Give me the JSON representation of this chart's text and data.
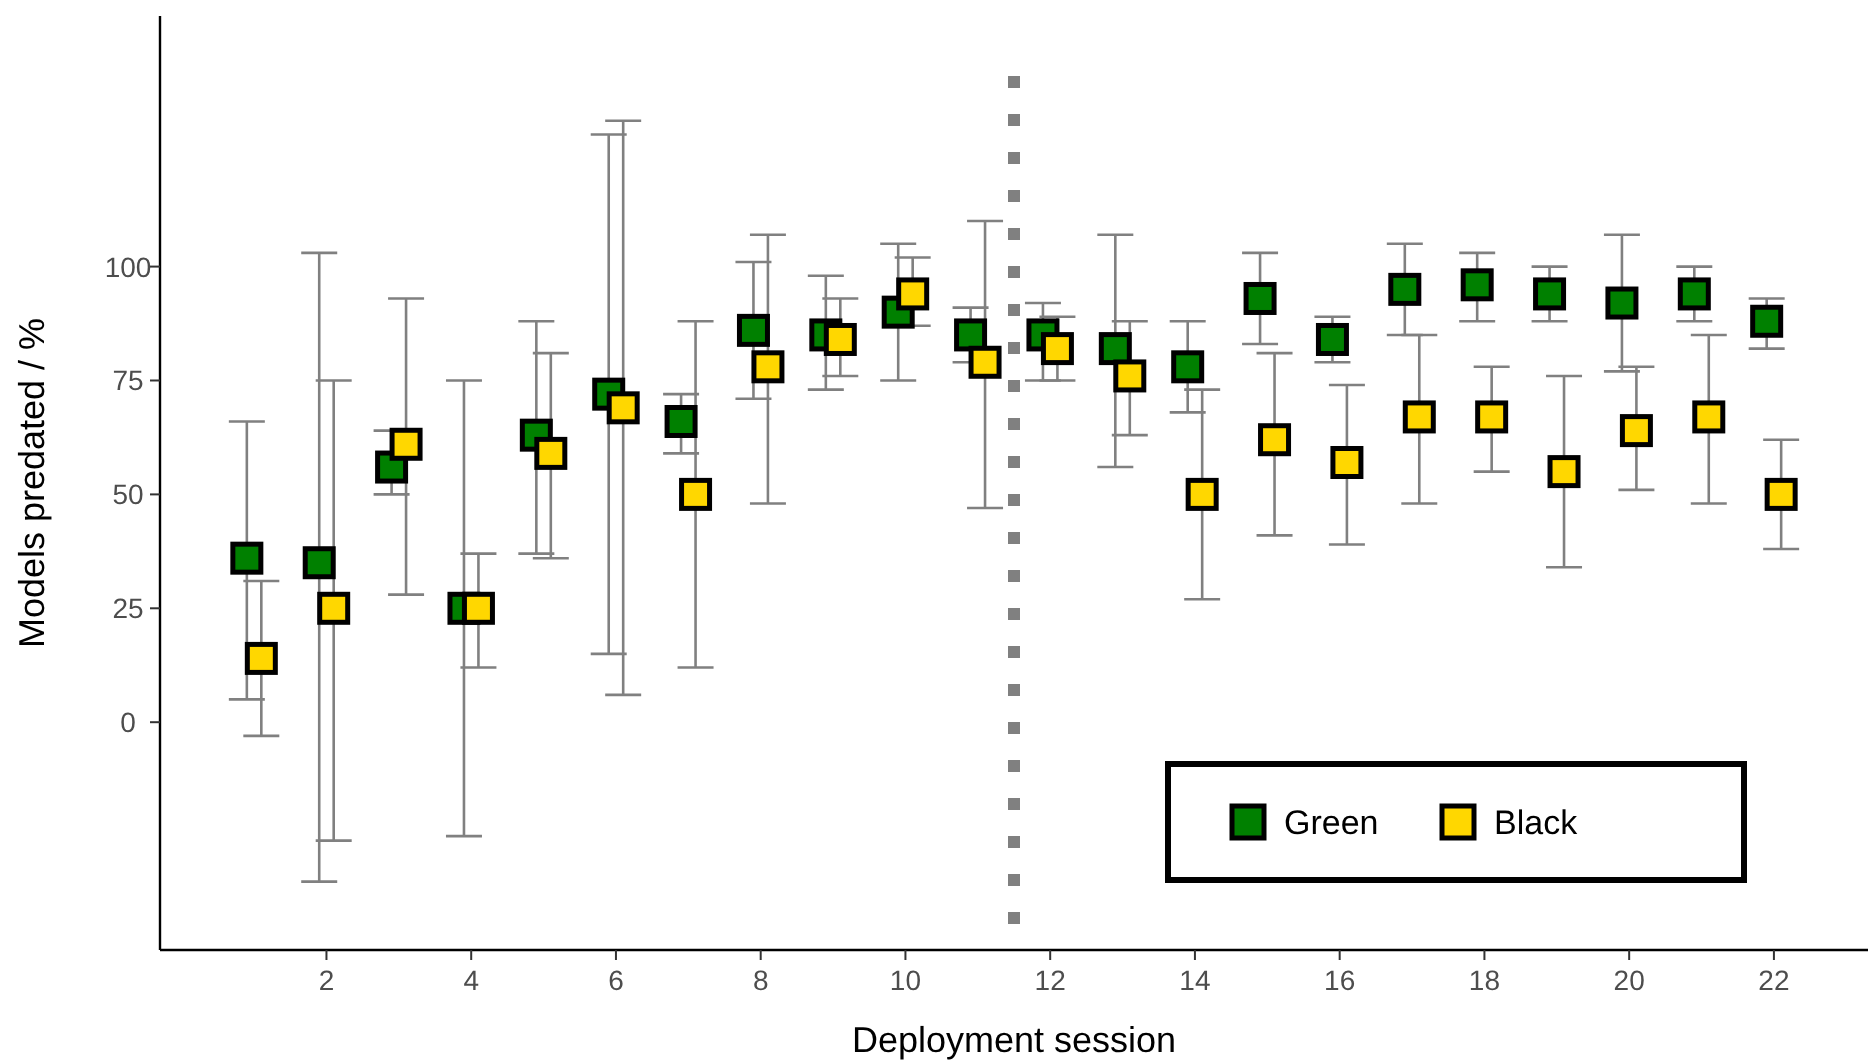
{
  "chart_data": {
    "type": "scatter",
    "xlabel": "Deployment session",
    "ylabel": "Models predated / %",
    "xlim": [
      -0.3,
      23.3
    ],
    "ylim": [
      -50,
      155
    ],
    "xticks": [
      2,
      4,
      6,
      8,
      10,
      12,
      14,
      16,
      18,
      20,
      22
    ],
    "yticks": [
      0,
      25,
      50,
      75,
      100
    ],
    "grid": false,
    "legend": "bottom right",
    "marker": "square",
    "ref_lines": [
      {
        "axis": "x",
        "value": 11.5,
        "color": "#808080",
        "line_style": "dotted"
      }
    ],
    "series": [
      {
        "name": "Green",
        "color": "#008000",
        "x": [
          0.9,
          1.9,
          2.9,
          3.9,
          4.9,
          5.9,
          6.9,
          7.9,
          8.9,
          9.9,
          10.9,
          11.9,
          12.9,
          13.9,
          14.9,
          15.9,
          16.9,
          17.9,
          18.9,
          19.9,
          20.9,
          21.9
        ],
        "values": [
          36,
          35,
          56,
          25,
          63,
          72,
          66,
          86,
          85,
          90,
          85,
          85,
          82,
          78,
          93,
          84,
          95,
          96,
          94,
          92,
          94,
          88
        ],
        "errors": [
          [
            5,
            66
          ],
          [
            -35,
            103
          ],
          [
            50,
            64
          ],
          [
            -25,
            75
          ],
          [
            37,
            88
          ],
          [
            15,
            129
          ],
          [
            59,
            72
          ],
          [
            71,
            101
          ],
          [
            73,
            98
          ],
          [
            75,
            105
          ],
          [
            79,
            91
          ],
          [
            75,
            92
          ],
          [
            56,
            107
          ],
          [
            68,
            88
          ],
          [
            83,
            103
          ],
          [
            79,
            89
          ],
          [
            85,
            105
          ],
          [
            88,
            103
          ],
          [
            88,
            100
          ],
          [
            77,
            107
          ],
          [
            88,
            100
          ],
          [
            82,
            93
          ]
        ]
      },
      {
        "name": "Black",
        "color": "#ffd700",
        "x": [
          1.1,
          2.1,
          3.1,
          4.1,
          5.1,
          6.1,
          7.1,
          8.1,
          9.1,
          10.1,
          11.1,
          12.1,
          13.1,
          14.1,
          15.1,
          16.1,
          17.1,
          18.1,
          19.1,
          20.1,
          21.1,
          22.1
        ],
        "values": [
          14,
          25,
          61,
          25,
          59,
          69,
          50,
          78,
          84,
          94,
          79,
          82,
          76,
          50,
          62,
          57,
          67,
          67,
          55,
          64,
          67,
          50
        ],
        "errors": [
          [
            -3,
            31
          ],
          [
            -26,
            75
          ],
          [
            28,
            93
          ],
          [
            12,
            37
          ],
          [
            36,
            81
          ],
          [
            6,
            132
          ],
          [
            12,
            88
          ],
          [
            48,
            107
          ],
          [
            76,
            93
          ],
          [
            87,
            102
          ],
          [
            47,
            110
          ],
          [
            75,
            89
          ],
          [
            63,
            88
          ],
          [
            27,
            73
          ],
          [
            41,
            81
          ],
          [
            39,
            74
          ],
          [
            48,
            85
          ],
          [
            55,
            78
          ],
          [
            34,
            76
          ],
          [
            51,
            78
          ],
          [
            48,
            85
          ],
          [
            38,
            62
          ]
        ]
      }
    ]
  }
}
